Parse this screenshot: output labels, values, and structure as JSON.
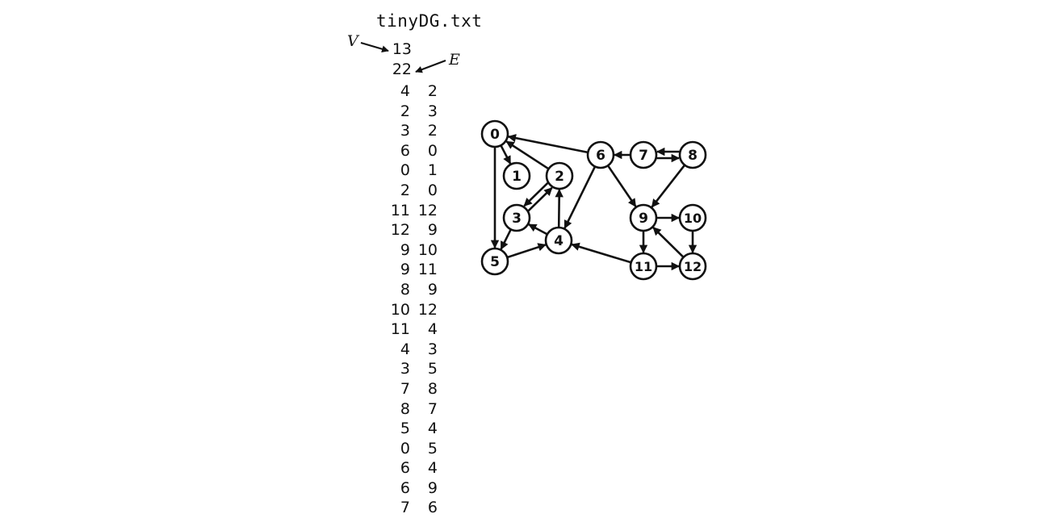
{
  "file": {
    "title": "tinyDG.txt",
    "vertex_count": "13",
    "edge_count": "22",
    "v_label": "V",
    "e_label": "E"
  },
  "edges": [
    [
      "4",
      "2"
    ],
    [
      "2",
      "3"
    ],
    [
      "3",
      "2"
    ],
    [
      "6",
      "0"
    ],
    [
      "0",
      "1"
    ],
    [
      "2",
      "0"
    ],
    [
      "11",
      "12"
    ],
    [
      "12",
      "9"
    ],
    [
      "9",
      "10"
    ],
    [
      "9",
      "11"
    ],
    [
      "8",
      "9"
    ],
    [
      "10",
      "12"
    ],
    [
      "11",
      "4"
    ],
    [
      "4",
      "3"
    ],
    [
      "3",
      "5"
    ],
    [
      "7",
      "8"
    ],
    [
      "8",
      "7"
    ],
    [
      "5",
      "4"
    ],
    [
      "0",
      "5"
    ],
    [
      "6",
      "4"
    ],
    [
      "6",
      "9"
    ],
    [
      "7",
      "6"
    ]
  ],
  "vertices": [
    "0",
    "1",
    "2",
    "3",
    "4",
    "5",
    "6",
    "7",
    "8",
    "9",
    "10",
    "11",
    "12"
  ],
  "colors": {
    "ink": "#111111",
    "node_fill": "#ffffff"
  }
}
